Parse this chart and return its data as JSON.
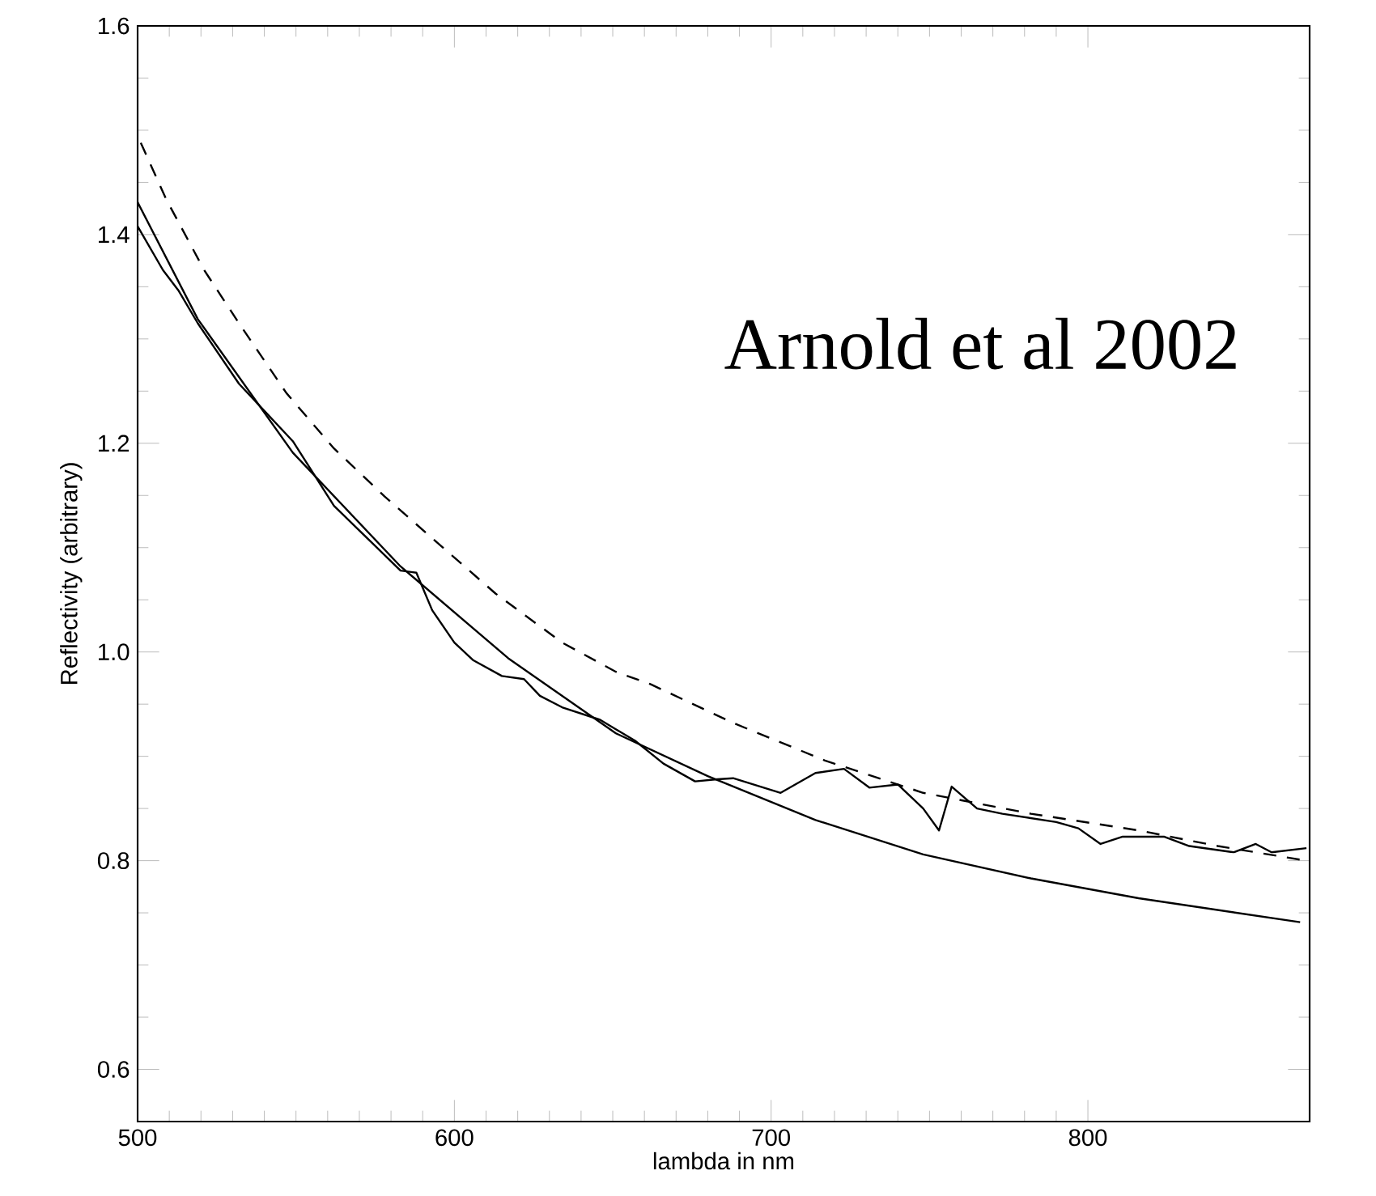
{
  "chart_data": {
    "type": "line",
    "xlabel": "lambda in nm",
    "ylabel": "Reflectivity (arbitrary)",
    "xlim": [
      500,
      870
    ],
    "ylim": [
      0.55,
      1.6
    ],
    "xticks": [
      500,
      600,
      700,
      800
    ],
    "yticks": [
      0.6,
      0.8,
      {
        "value": 1.0,
        "label": "1.0"
      },
      1.2,
      1.4,
      1.6
    ],
    "grid": false,
    "marker": "none",
    "annotations": [
      "Arnold et al 2002"
    ],
    "series": [
      {
        "color": "#000000",
        "line_style": "solid",
        "x": [
          500,
          508,
          513,
          519,
          532,
          549,
          562,
          583,
          588,
          593,
          600,
          606,
          615,
          622,
          627,
          634,
          646,
          657,
          666,
          676,
          683,
          688,
          703,
          714,
          723,
          731,
          740,
          748,
          753,
          757,
          765,
          773,
          790,
          797,
          804,
          811,
          816,
          824,
          832,
          846,
          853,
          858,
          869
        ],
        "values": [
          1.408,
          1.366,
          1.346,
          1.315,
          1.257,
          1.202,
          1.14,
          1.078,
          1.076,
          1.04,
          1.009,
          0.992,
          0.977,
          0.974,
          0.958,
          0.947,
          0.935,
          0.915,
          0.893,
          0.876,
          0.878,
          0.879,
          0.865,
          0.884,
          0.888,
          0.87,
          0.873,
          0.85,
          0.829,
          0.871,
          0.85,
          0.845,
          0.837,
          0.831,
          0.816,
          0.823,
          0.823,
          0.823,
          0.814,
          0.808,
          0.816,
          0.808,
          0.812
        ]
      },
      {
        "color": "#000000",
        "line_style": "solid",
        "x": [
          500,
          519,
          549,
          583,
          617,
          651,
          680,
          714,
          748,
          782,
          816,
          867
        ],
        "values": [
          1.431,
          1.319,
          1.191,
          1.082,
          0.994,
          0.922,
          0.881,
          0.839,
          0.806,
          0.783,
          0.764,
          0.741
        ]
      },
      {
        "color": "#000000",
        "line_style": "dashed",
        "x": [
          501,
          509,
          521,
          532,
          547,
          562,
          578,
          593,
          613,
          634,
          651,
          662,
          688,
          717,
          748,
          782,
          816,
          841,
          869
        ],
        "values": [
          1.488,
          1.434,
          1.366,
          1.315,
          1.248,
          1.195,
          1.149,
          1.109,
          1.056,
          1.009,
          0.981,
          0.969,
          0.932,
          0.896,
          0.865,
          0.845,
          0.829,
          0.814,
          0.8
        ]
      }
    ]
  }
}
